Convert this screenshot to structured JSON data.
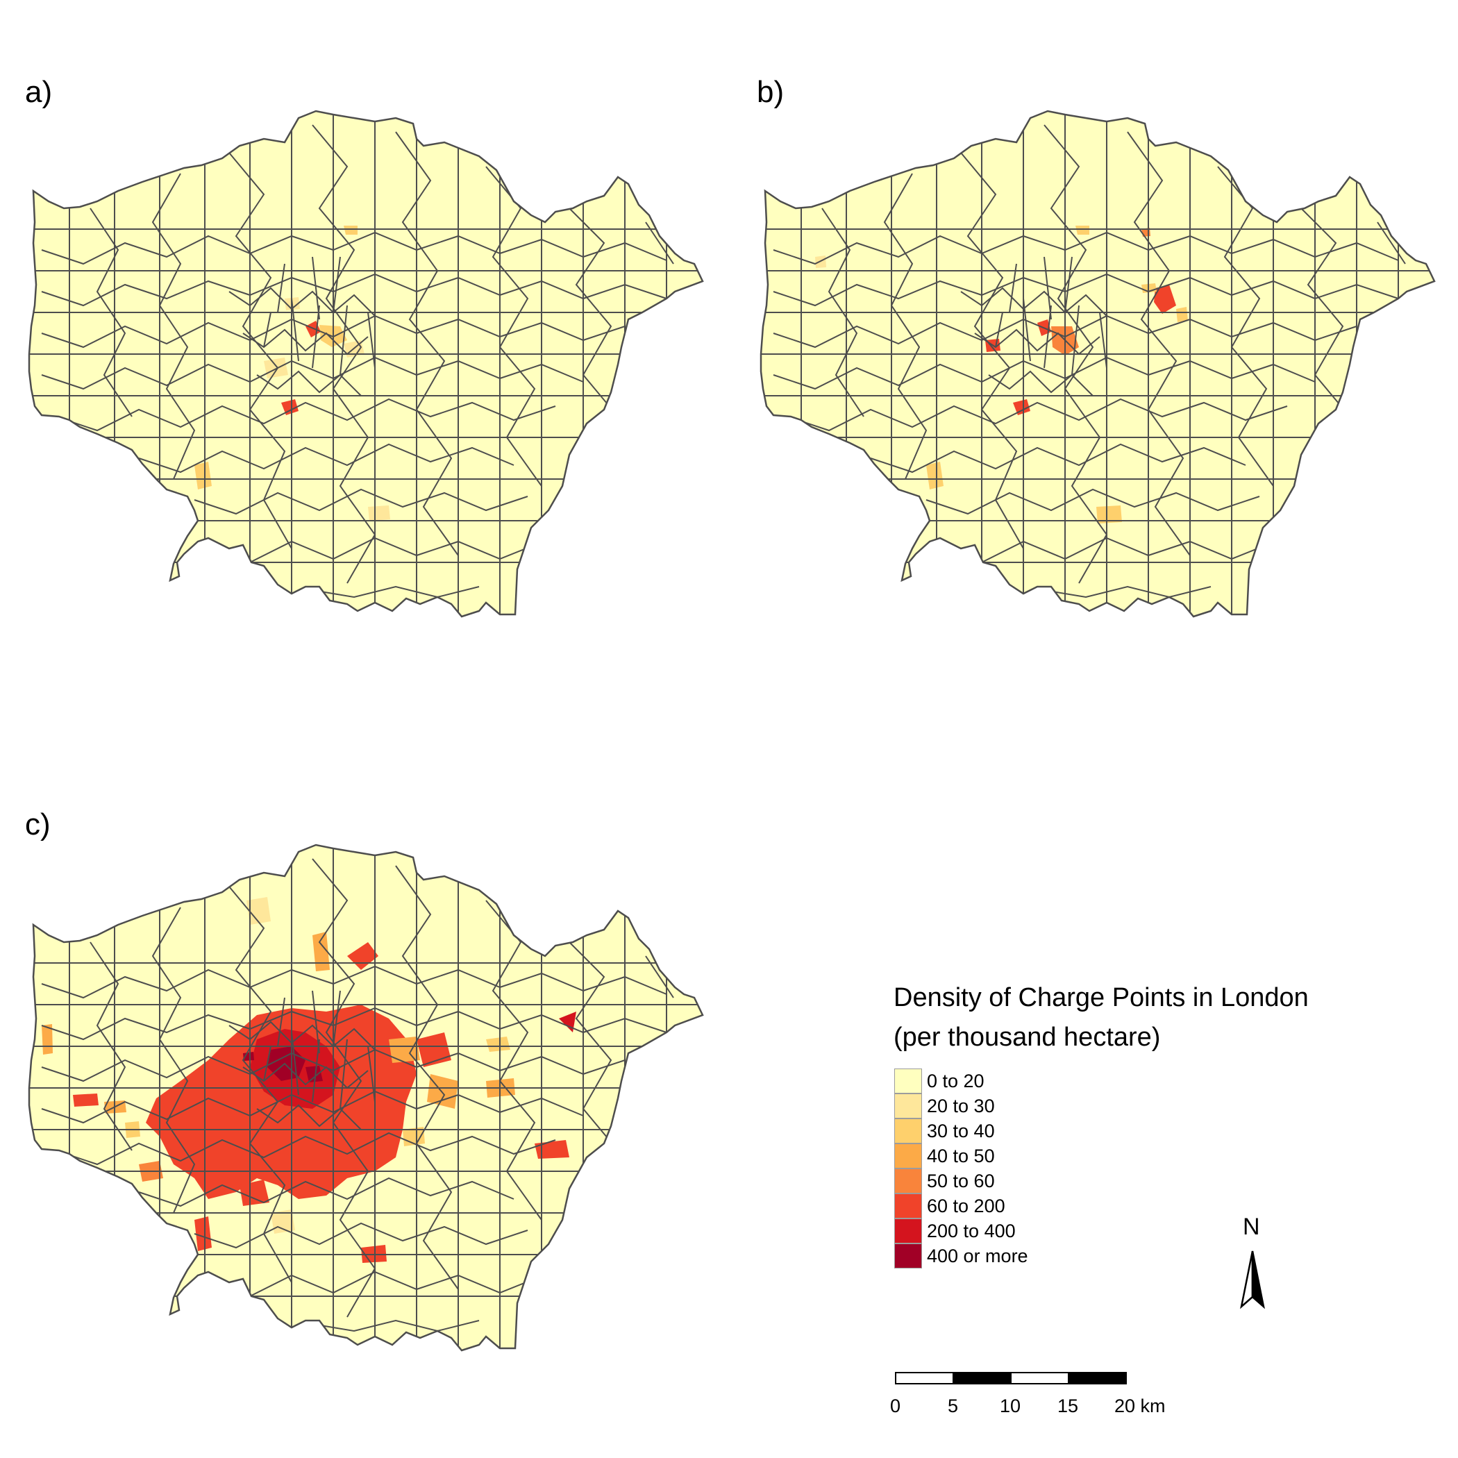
{
  "panels": [
    {
      "label": "a)"
    },
    {
      "label": "b)"
    },
    {
      "label": "c)"
    }
  ],
  "legend": {
    "title_line1": "Density of Charge Points in London",
    "title_line2": "(per thousand hectare)",
    "classes": [
      {
        "label": "0 to 20",
        "color": "#ffffbf"
      },
      {
        "label": "20 to 30",
        "color": "#fee79b"
      },
      {
        "label": "30 to 40",
        "color": "#fed06c"
      },
      {
        "label": "40 to 50",
        "color": "#fcaa47"
      },
      {
        "label": "50 to 60",
        "color": "#f9843b"
      },
      {
        "label": "60 to 200",
        "color": "#f0432a"
      },
      {
        "label": "200 to 400",
        "color": "#d4141e"
      },
      {
        "label": "400 or more",
        "color": "#a10026"
      }
    ]
  },
  "north_arrow": {
    "label": "N"
  },
  "scale_bar": {
    "ticks": [
      "0",
      "5",
      "10",
      "15",
      "20 km"
    ]
  },
  "colors": {
    "boundary": "#4d4d4d",
    "background": "#ffffff"
  }
}
